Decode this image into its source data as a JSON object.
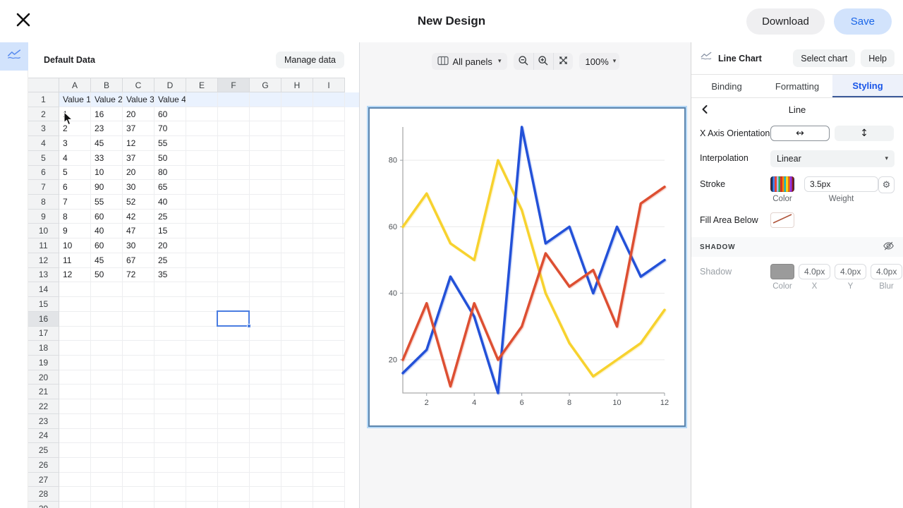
{
  "header": {
    "title": "New Design",
    "download": "Download",
    "save": "Save"
  },
  "colors": {
    "accent_blue": "#1a66e8",
    "save_pill_bg": "#d2e3fc",
    "selection_blue": "#4a7de1",
    "rail_tile_bg": "#d2e3fc"
  },
  "sheet": {
    "panel_title": "Default Data",
    "manage_button": "Manage data",
    "column_letters": [
      "A",
      "B",
      "C",
      "D",
      "E",
      "F",
      "G",
      "H",
      "I"
    ],
    "row_count": 29,
    "selected_column": "F",
    "selected_row": 16,
    "selected_cell": "F16",
    "rows": [
      [
        "Value 1",
        "Value 2",
        "Value 3",
        "Value 4"
      ],
      [
        "1",
        "16",
        "20",
        "60"
      ],
      [
        "2",
        "23",
        "37",
        "70"
      ],
      [
        "3",
        "45",
        "12",
        "55"
      ],
      [
        "4",
        "33",
        "37",
        "50"
      ],
      [
        "5",
        "10",
        "20",
        "80"
      ],
      [
        "6",
        "90",
        "30",
        "65"
      ],
      [
        "7",
        "55",
        "52",
        "40"
      ],
      [
        "8",
        "60",
        "42",
        "25"
      ],
      [
        "9",
        "40",
        "47",
        "15"
      ],
      [
        "10",
        "60",
        "30",
        "20"
      ],
      [
        "11",
        "45",
        "67",
        "25"
      ],
      [
        "12",
        "50",
        "72",
        "35"
      ]
    ]
  },
  "canvas_toolbar": {
    "panels_label": "All panels",
    "zoom_value": "100%"
  },
  "right_panel": {
    "chart_type": "Line Chart",
    "select_chart": "Select chart",
    "help": "Help",
    "tabs": [
      "Binding",
      "Formatting",
      "Styling"
    ],
    "active_tab": "Styling",
    "section": "Line",
    "x_axis_orientation_label": "X Axis Orientation",
    "interpolation_label": "Interpolation",
    "interpolation_value": "Linear",
    "stroke_label": "Stroke",
    "stroke_weight": "3.5px",
    "color_label": "Color",
    "weight_label": "Weight",
    "fill_area_label": "Fill Area Below",
    "shadow_section": "SHADOW",
    "shadow_label": "Shadow",
    "shadow_color": "#9b9b9b",
    "shadow_x": "4.0px",
    "shadow_y": "4.0px",
    "shadow_blur": "4.0px",
    "x_short_label": "X",
    "y_short_label": "Y",
    "blur_label": "Blur"
  },
  "chart_data": {
    "type": "line",
    "x": [
      1,
      2,
      3,
      4,
      5,
      6,
      7,
      8,
      9,
      10,
      11,
      12
    ],
    "xlim": [
      1,
      12
    ],
    "ylim": [
      10,
      90
    ],
    "xticks": [
      2,
      4,
      6,
      8,
      10,
      12
    ],
    "yticks": [
      20,
      40,
      60,
      80
    ],
    "grid": "horizontal gridlines only",
    "legend": false,
    "stroke_width": 3.5,
    "series": [
      {
        "name": "Value 4",
        "color": "#f7d22e",
        "values": [
          60,
          70,
          55,
          50,
          80,
          65,
          40,
          25,
          15,
          20,
          25,
          35
        ]
      },
      {
        "name": "Value 2",
        "color": "#2351d8",
        "values": [
          16,
          23,
          45,
          33,
          10,
          90,
          55,
          60,
          40,
          60,
          45,
          50
        ]
      },
      {
        "name": "Value 3",
        "color": "#dd4f32",
        "values": [
          20,
          37,
          12,
          37,
          20,
          30,
          52,
          42,
          47,
          30,
          67,
          72
        ]
      }
    ]
  }
}
